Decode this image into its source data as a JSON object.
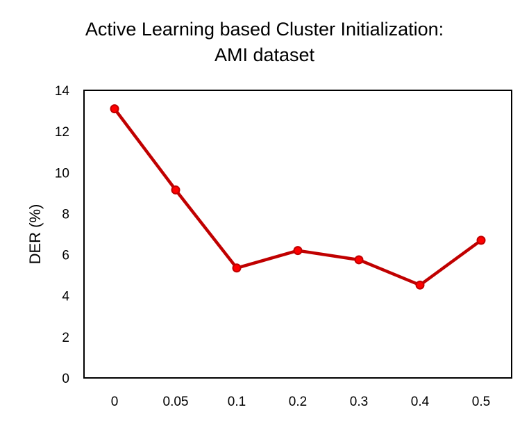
{
  "chart_data": {
    "type": "line",
    "title": [
      "Active Learning based Cluster Initialization:",
      "AMI dataset"
    ],
    "xlabel": "",
    "ylabel": "DER (%)",
    "categories": [
      "0",
      "0.05",
      "0.1",
      "0.2",
      "0.3",
      "0.4",
      "0.5"
    ],
    "series": [
      {
        "values": [
          13.1,
          9.15,
          5.35,
          6.2,
          5.75,
          4.52,
          6.7
        ]
      }
    ],
    "ylim": [
      0,
      14
    ],
    "yticks": [
      0,
      2,
      4,
      6,
      8,
      10,
      12,
      14
    ],
    "grid": false,
    "legend": "none",
    "line_color": "#C00000",
    "marker_color": "#FF0000"
  }
}
